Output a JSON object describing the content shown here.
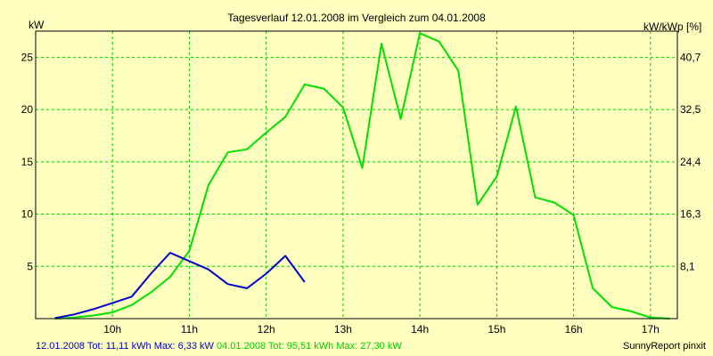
{
  "chart_data": {
    "type": "line",
    "title": "Tagesverlauf 12.01.2008 im Vergleich zum 04.01.2008",
    "ylabel_left": "kW",
    "ylabel_right": "kW/kWp [%]",
    "ylim": [
      0,
      27.5
    ],
    "xlim": [
      9.0,
      17.35
    ],
    "y_ticks": [
      5,
      10,
      15,
      20,
      25
    ],
    "y_tick_labels": [
      "5",
      "10",
      "15",
      "20",
      "25"
    ],
    "right_tick_values": [
      5,
      10,
      15,
      20,
      25
    ],
    "right_tick_labels": [
      "8,1",
      "16,3",
      "24,4",
      "32,5",
      "40,7"
    ],
    "x_ticks": [
      10,
      11,
      12,
      13,
      14,
      15,
      16,
      17
    ],
    "x_tick_labels": [
      "10h",
      "11h",
      "12h",
      "13h",
      "14h",
      "15h",
      "16h",
      "17h"
    ],
    "grid": true,
    "series": [
      {
        "name": "12.01.2008",
        "color": "#0000cc",
        "x": [
          9.25,
          9.5,
          9.75,
          10.0,
          10.25,
          10.5,
          10.75,
          11.0,
          11.25,
          11.5,
          11.75,
          12.0,
          12.25,
          12.5
        ],
        "values": [
          0.05,
          0.4,
          0.9,
          1.5,
          2.1,
          4.3,
          6.3,
          5.5,
          4.7,
          3.3,
          2.9,
          4.3,
          6.0,
          3.5
        ]
      },
      {
        "name": "04.01.2008",
        "color": "#00e000",
        "x": [
          9.25,
          9.5,
          9.75,
          10.0,
          10.25,
          10.5,
          10.75,
          11.0,
          11.25,
          11.5,
          11.75,
          12.0,
          12.25,
          12.5,
          12.75,
          13.0,
          13.25,
          13.5,
          13.75,
          14.0,
          14.25,
          14.5,
          14.75,
          15.0,
          15.25,
          15.5,
          15.75,
          16.0,
          16.25,
          16.5,
          16.75,
          17.0,
          17.25
        ],
        "values": [
          0,
          0.1,
          0.3,
          0.6,
          1.3,
          2.5,
          4.0,
          6.5,
          12.8,
          15.9,
          16.2,
          17.8,
          19.3,
          22.4,
          22.0,
          20.2,
          14.4,
          26.3,
          19.1,
          27.3,
          26.5,
          23.7,
          10.9,
          13.6,
          20.3,
          11.6,
          11.1,
          9.9,
          2.9,
          1.1,
          0.7,
          0.1,
          0
        ]
      }
    ]
  },
  "footer": {
    "text_a": "12.01.2008 Tot: 11,11 kWh Max: 6,33 kW",
    "text_b": "04.01.2008 Tot: 95,51 kWh Max: 27,30 kW",
    "color_a": "#0000cc",
    "color_b": "#00cc00",
    "brand": "SunnyReport pinxit"
  }
}
